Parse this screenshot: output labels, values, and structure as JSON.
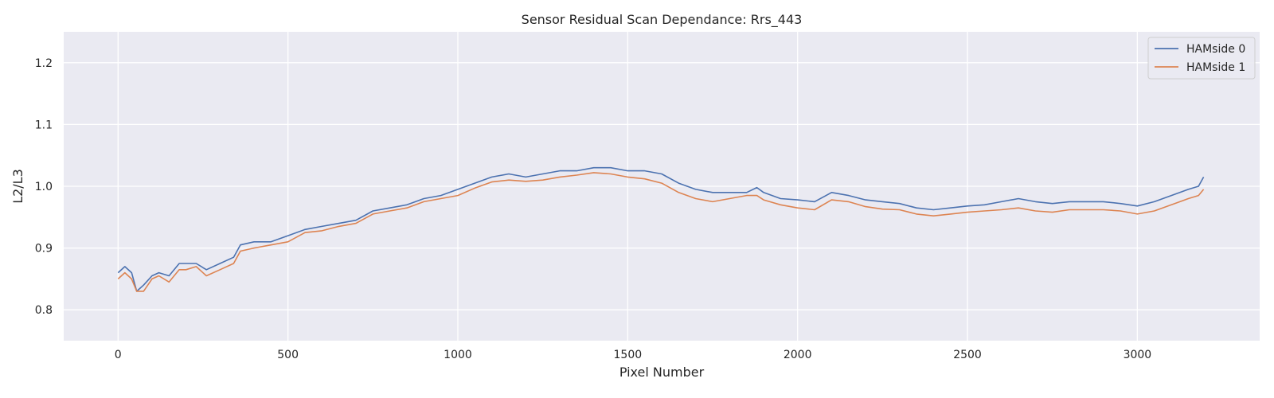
{
  "chart_data": {
    "type": "line",
    "title": "Sensor Residual Scan Dependance: Rrs_443",
    "xlabel": "Pixel Number",
    "ylabel": "L2/L3",
    "xlim": [
      -160,
      3360
    ],
    "ylim": [
      0.75,
      1.25
    ],
    "xticks": [
      0,
      500,
      1000,
      1500,
      2000,
      2500,
      3000
    ],
    "xtick_labels": [
      "0",
      "500",
      "1000",
      "1500",
      "2000",
      "2500",
      "3000"
    ],
    "yticks": [
      0.8,
      0.9,
      1.0,
      1.1,
      1.2
    ],
    "ytick_labels": [
      "0.8",
      "0.9",
      "1.0",
      "1.1",
      "1.2"
    ],
    "grid": true,
    "legend_position": "top-right",
    "background": "#eaeaf2",
    "x": [
      0,
      20,
      40,
      55,
      75,
      100,
      120,
      150,
      180,
      200,
      230,
      260,
      300,
      340,
      360,
      400,
      450,
      500,
      550,
      600,
      650,
      700,
      750,
      800,
      850,
      900,
      950,
      1000,
      1050,
      1100,
      1150,
      1200,
      1250,
      1300,
      1350,
      1400,
      1450,
      1500,
      1550,
      1600,
      1650,
      1700,
      1750,
      1800,
      1850,
      1880,
      1900,
      1950,
      2000,
      2050,
      2100,
      2150,
      2200,
      2250,
      2300,
      2350,
      2400,
      2450,
      2500,
      2550,
      2600,
      2650,
      2700,
      2750,
      2800,
      2850,
      2900,
      2950,
      3000,
      3050,
      3100,
      3150,
      3180,
      3195
    ],
    "series": [
      {
        "name": "HAMside 0",
        "color": "#4c72b0",
        "values": [
          0.86,
          0.87,
          0.86,
          0.83,
          0.84,
          0.855,
          0.86,
          0.855,
          0.875,
          0.875,
          0.875,
          0.865,
          0.875,
          0.885,
          0.905,
          0.91,
          0.91,
          0.92,
          0.93,
          0.935,
          0.94,
          0.945,
          0.96,
          0.965,
          0.97,
          0.98,
          0.985,
          0.995,
          1.005,
          1.015,
          1.02,
          1.015,
          1.02,
          1.025,
          1.025,
          1.03,
          1.03,
          1.025,
          1.025,
          1.02,
          1.005,
          0.995,
          0.99,
          0.99,
          0.99,
          0.998,
          0.99,
          0.98,
          0.978,
          0.975,
          0.99,
          0.985,
          0.978,
          0.975,
          0.972,
          0.965,
          0.962,
          0.965,
          0.968,
          0.97,
          0.975,
          0.98,
          0.975,
          0.972,
          0.975,
          0.975,
          0.975,
          0.972,
          0.968,
          0.975,
          0.985,
          0.995,
          1.0,
          1.015
        ]
      },
      {
        "name": "HAMside 1",
        "color": "#dd8452",
        "values": [
          0.85,
          0.86,
          0.85,
          0.83,
          0.83,
          0.85,
          0.855,
          0.845,
          0.865,
          0.865,
          0.87,
          0.855,
          0.865,
          0.875,
          0.895,
          0.9,
          0.905,
          0.91,
          0.925,
          0.928,
          0.935,
          0.94,
          0.955,
          0.96,
          0.965,
          0.975,
          0.98,
          0.985,
          0.997,
          1.007,
          1.01,
          1.008,
          1.01,
          1.015,
          1.018,
          1.022,
          1.02,
          1.015,
          1.012,
          1.005,
          0.99,
          0.98,
          0.975,
          0.98,
          0.985,
          0.985,
          0.978,
          0.97,
          0.965,
          0.962,
          0.978,
          0.975,
          0.967,
          0.963,
          0.962,
          0.955,
          0.952,
          0.955,
          0.958,
          0.96,
          0.962,
          0.965,
          0.96,
          0.958,
          0.962,
          0.962,
          0.962,
          0.96,
          0.955,
          0.96,
          0.97,
          0.98,
          0.985,
          0.995
        ]
      }
    ]
  }
}
